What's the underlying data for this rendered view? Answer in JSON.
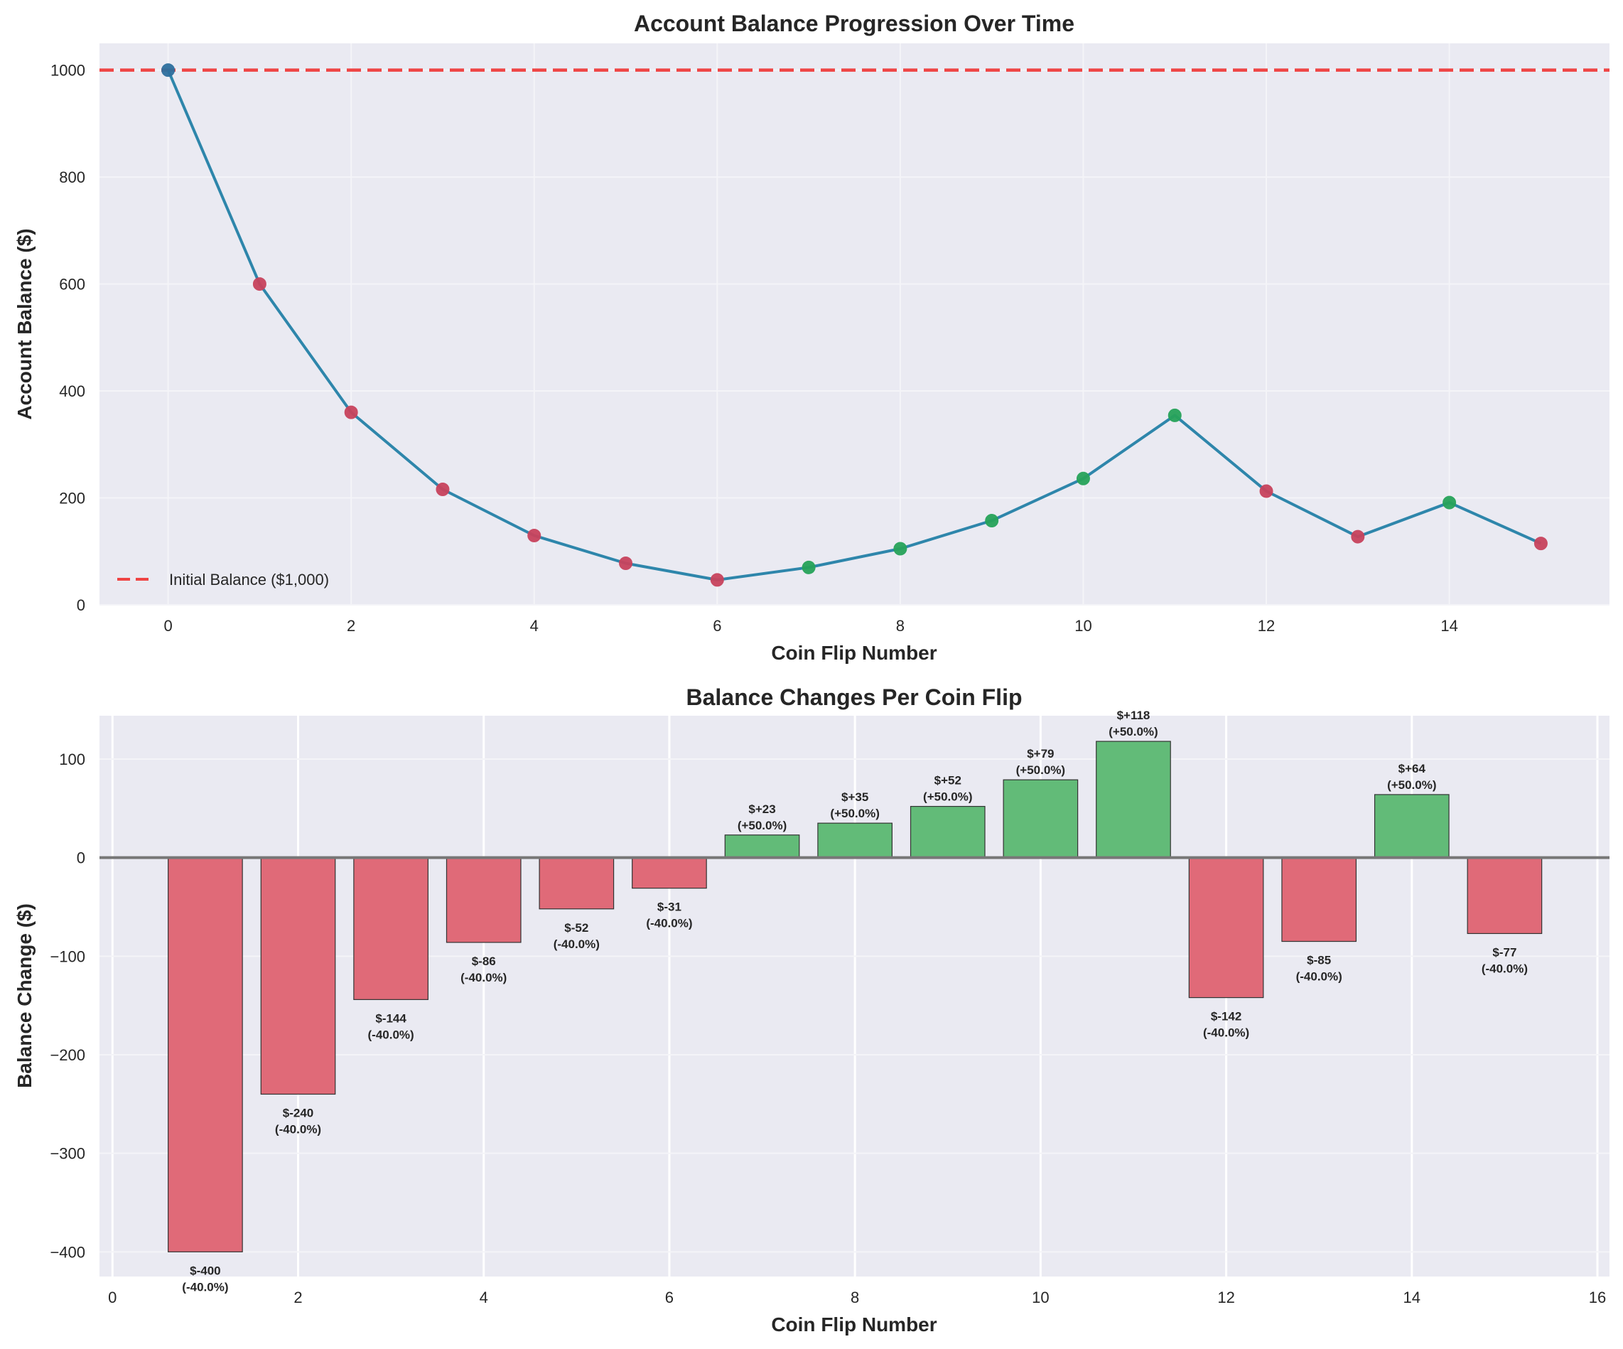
{
  "chart_data": [
    {
      "type": "line",
      "title": "Account Balance Progression Over Time",
      "xlabel": "Coin Flip Number",
      "ylabel": "Account Balance ($)",
      "xlim": [
        -0.75,
        15.75
      ],
      "ylim": [
        0,
        1050
      ],
      "xticks": [
        0,
        2,
        4,
        6,
        8,
        10,
        12,
        14
      ],
      "yticks": [
        0,
        200,
        400,
        600,
        800,
        1000
      ],
      "grid": true,
      "legend_position": "lower-left",
      "x": [
        0,
        1,
        2,
        3,
        4,
        5,
        6,
        7,
        8,
        9,
        10,
        11,
        12,
        13,
        14,
        15
      ],
      "series": [
        {
          "name": "Account Balance",
          "values": [
            1000,
            600,
            360,
            216,
            129.6,
            77.76,
            46.66,
            69.98,
            104.98,
            157.46,
            236.2,
            354.3,
            212.6,
            127.5,
            191.3,
            114.8
          ],
          "color": "#2e86ab",
          "marker_outcomes": [
            "start",
            "loss",
            "loss",
            "loss",
            "loss",
            "loss",
            "loss",
            "win",
            "win",
            "win",
            "win",
            "win",
            "loss",
            "loss",
            "win",
            "loss"
          ]
        }
      ],
      "reference_line": {
        "label": "Initial Balance ($1,000)",
        "value": 1000,
        "color": "#ef4444",
        "style": "dashed"
      },
      "colors": {
        "start": "#2e6f9e",
        "loss": "#c8435d",
        "win": "#27a35a"
      }
    },
    {
      "type": "bar",
      "title": "Balance Changes Per Coin Flip",
      "xlabel": "Coin Flip Number",
      "ylabel": "Balance Change ($)",
      "xlim": [
        -0.14,
        16.13
      ],
      "ylim": [
        -425,
        144
      ],
      "xticks": [
        0,
        2,
        4,
        6,
        8,
        10,
        12,
        14,
        16
      ],
      "yticks": [
        -400,
        -300,
        -200,
        -100,
        0,
        100
      ],
      "grid": true,
      "categories": [
        1,
        2,
        3,
        4,
        5,
        6,
        7,
        8,
        9,
        10,
        11,
        12,
        13,
        14,
        15
      ],
      "values": [
        -400,
        -240,
        -144,
        -86,
        -52,
        -31,
        23,
        35,
        52,
        79,
        118,
        -142,
        -85,
        64,
        -77
      ],
      "data_labels": [
        [
          "$-400",
          "(-40.0%)"
        ],
        [
          "$-240",
          "(-40.0%)"
        ],
        [
          "$-144",
          "(-40.0%)"
        ],
        [
          "$-86",
          "(-40.0%)"
        ],
        [
          "$-52",
          "(-40.0%)"
        ],
        [
          "$-31",
          "(-40.0%)"
        ],
        [
          "$+23",
          "(+50.0%)"
        ],
        [
          "$+35",
          "(+50.0%)"
        ],
        [
          "$+52",
          "(+50.0%)"
        ],
        [
          "$+79",
          "(+50.0%)"
        ],
        [
          "$+118",
          "(+50.0%)"
        ],
        [
          "$-142",
          "(-40.0%)"
        ],
        [
          "$-85",
          "(-40.0%)"
        ],
        [
          "$+64",
          "(+50.0%)"
        ],
        [
          "$-77",
          "(-40.0%)"
        ]
      ],
      "colors": {
        "positive": "#62bb78",
        "negative": "#e06a78",
        "zero_line": "#777777"
      }
    }
  ]
}
